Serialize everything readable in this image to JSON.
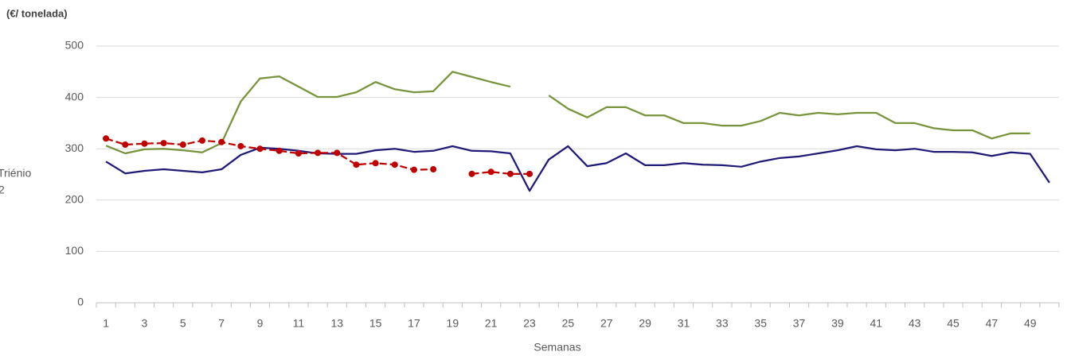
{
  "chart_data": {
    "type": "line",
    "title": "(€/ tonelada)",
    "x_label": "Semanas",
    "legend_fragments": [
      "Triénio",
      "2"
    ],
    "categories": [
      1,
      null,
      3,
      null,
      5,
      null,
      7,
      null,
      9,
      null,
      11,
      null,
      13,
      null,
      15,
      null,
      17,
      null,
      19,
      null,
      21,
      null,
      23,
      null,
      25,
      null,
      27,
      null,
      29,
      null,
      31,
      null,
      33,
      null,
      35,
      null,
      37,
      null,
      39,
      null,
      41,
      null,
      43,
      null,
      45,
      null,
      47,
      null,
      49,
      null
    ],
    "series": [
      {
        "color": "#77933c",
        "values": [
          306,
          291,
          299,
          300,
          297,
          293,
          311,
          392,
          437,
          441,
          421,
          401,
          401,
          410,
          430,
          416,
          410,
          412,
          450,
          440,
          430,
          421,
          null,
          404,
          378,
          361,
          381,
          381,
          365,
          365,
          350,
          350,
          345,
          345,
          354,
          370,
          365,
          370,
          367,
          370,
          370,
          350,
          350,
          340,
          336,
          336,
          320,
          330,
          330,
          null
        ]
      },
      {
        "color": "#1f1a78",
        "values": [
          275,
          252,
          257,
          260,
          257,
          254,
          260,
          288,
          302,
          300,
          296,
          291,
          290,
          290,
          297,
          300,
          294,
          296,
          305,
          296,
          295,
          291,
          218,
          279,
          305,
          266,
          272,
          291,
          268,
          268,
          272,
          269,
          268,
          265,
          275,
          282,
          285,
          291,
          297,
          305,
          299,
          297,
          300,
          294,
          294,
          293,
          286,
          293,
          290,
          234
        ]
      },
      {
        "color": "#c00000",
        "dashed": true,
        "markers": true,
        "values": [
          320,
          308,
          310,
          311,
          308,
          316,
          313,
          305,
          300,
          296,
          291,
          292,
          292,
          269,
          272,
          269,
          259,
          260,
          null,
          251,
          255,
          251,
          251,
          null,
          null,
          null,
          null,
          null,
          null,
          null,
          null,
          null,
          null,
          null,
          null,
          null,
          null,
          null,
          null,
          null,
          null,
          null,
          null,
          null,
          null,
          null,
          null,
          null,
          null,
          null
        ]
      }
    ],
    "ylim": [
      0,
      500
    ],
    "yticks": [
      0,
      100,
      200,
      300,
      400,
      500
    ],
    "grid": true
  }
}
